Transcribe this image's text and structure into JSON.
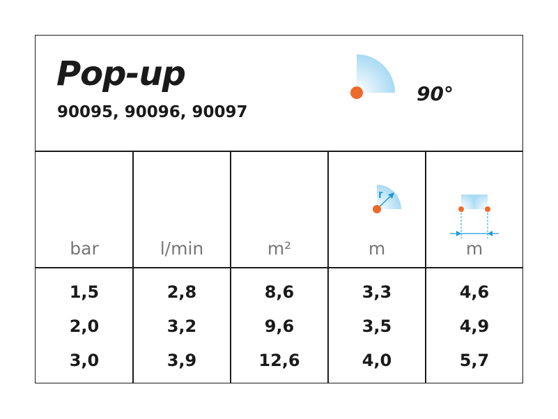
{
  "header": {
    "title": "Pop-up",
    "models": "90095, 90096, 90097",
    "angle": "90°",
    "icon": "quarter-circle-spray-icon"
  },
  "columns": [
    {
      "unit": "bar"
    },
    {
      "unit": "l/min"
    },
    {
      "unit": "m²"
    },
    {
      "unit": "m",
      "icon": "radius-icon",
      "icon_label": "r"
    },
    {
      "unit": "m",
      "icon": "spacing-icon"
    }
  ],
  "rows": [
    [
      "1,5",
      "2,8",
      "8,6",
      "3,3",
      "4,6"
    ],
    [
      "2,0",
      "3,2",
      "9,6",
      "3,5",
      "4,9"
    ],
    [
      "3,0",
      "3,9",
      "12,6",
      "4,0",
      "5,7"
    ]
  ],
  "colors": {
    "nozzle": "#ee6a2a",
    "spray": "#a8daf3",
    "arrow": "#1e9ad6",
    "text": "#1a1a1a",
    "unit": "#777777"
  }
}
